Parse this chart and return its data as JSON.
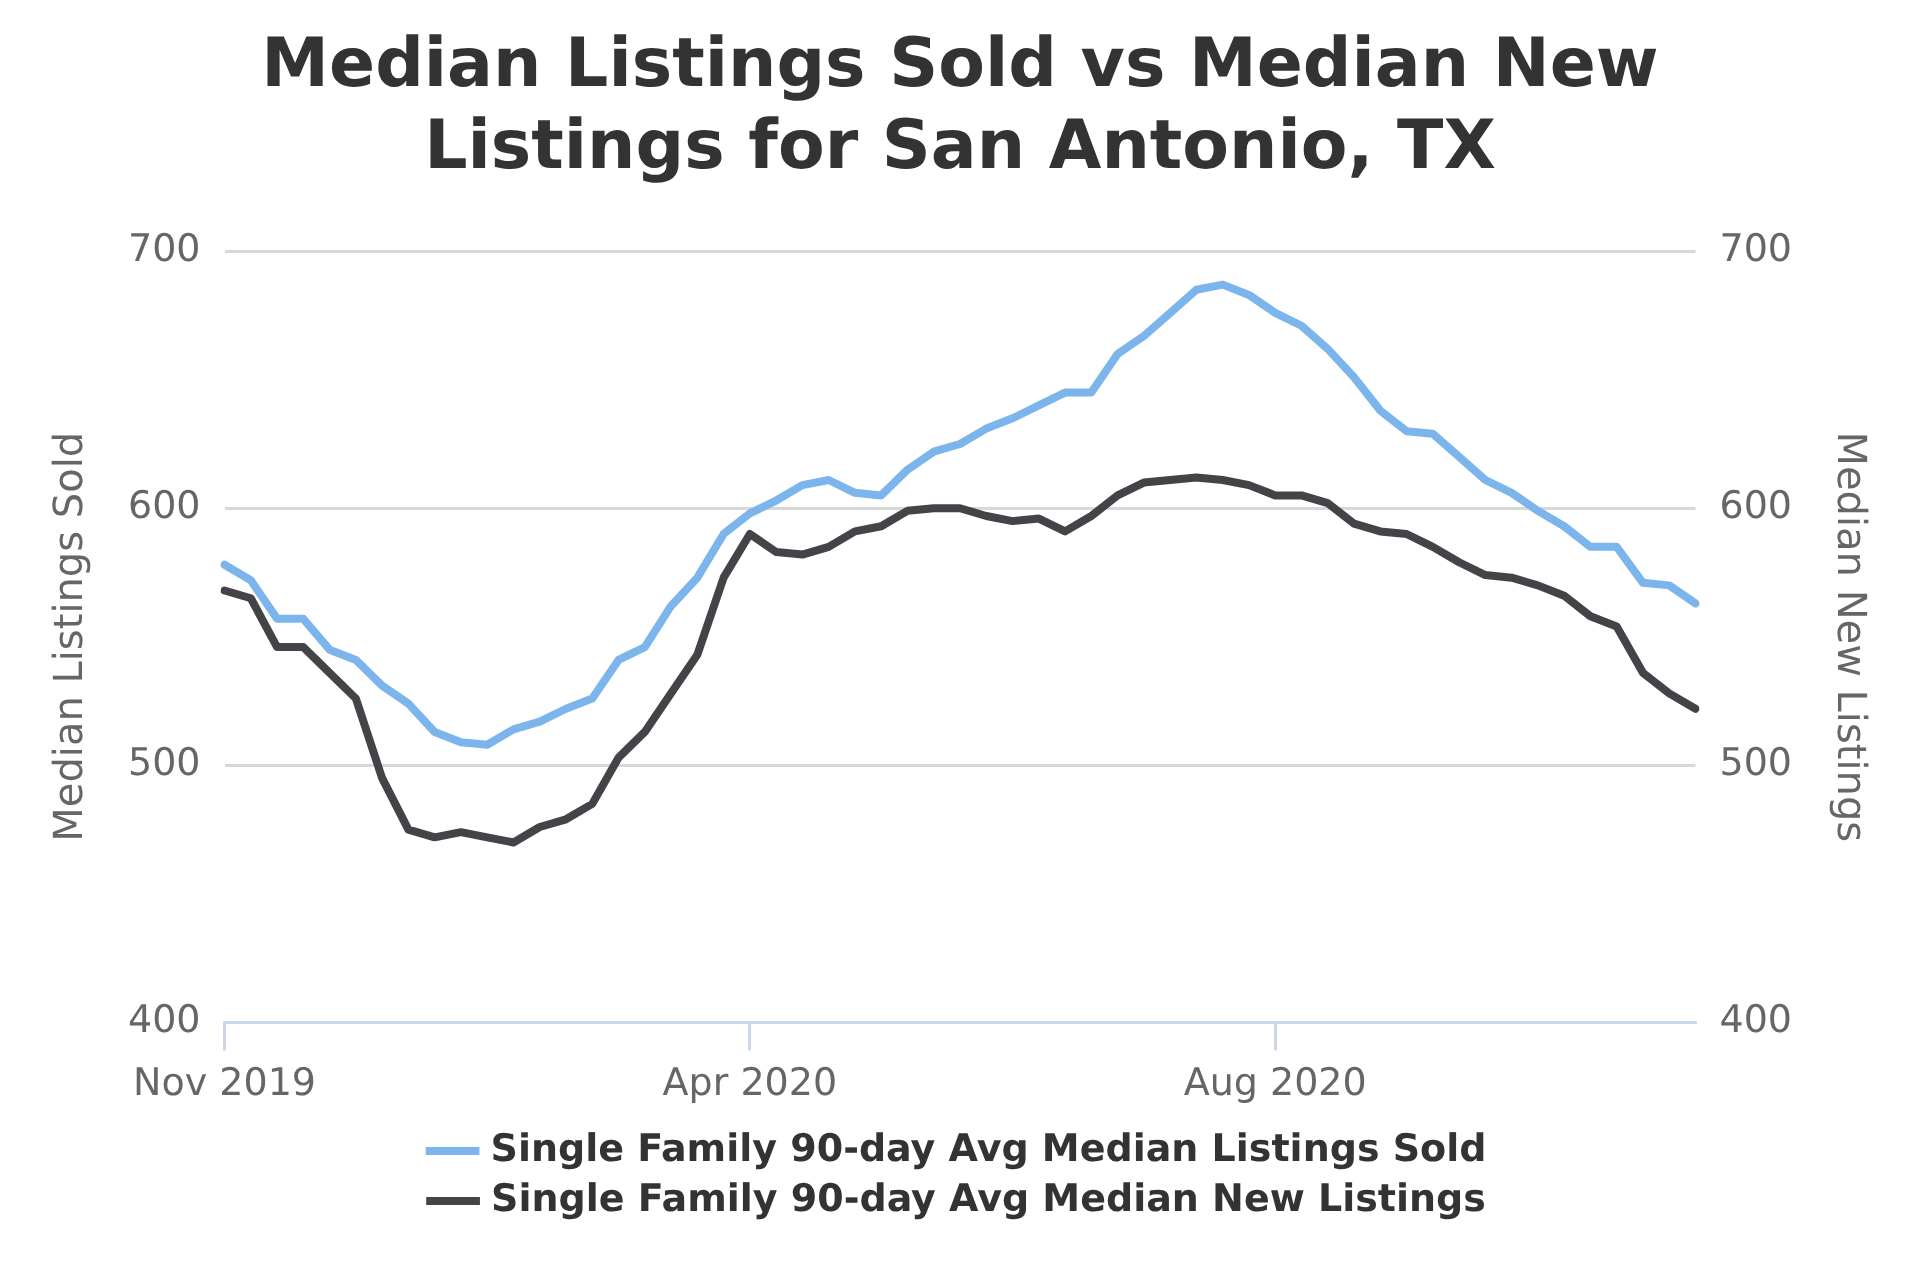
{
  "chart_data": {
    "type": "line",
    "title": "Median Listings Sold vs Median New Listings for San Antonio, TX",
    "ylabel": "Median Listings Sold",
    "y2label": "Median New Listings",
    "categories": [
      "Nov 2019",
      null,
      null,
      null,
      null,
      null,
      null,
      null,
      null,
      null,
      null,
      null,
      null,
      null,
      null,
      null,
      null,
      null,
      null,
      null,
      "Apr 2020",
      null,
      null,
      null,
      null,
      null,
      null,
      null,
      null,
      null,
      null,
      null,
      null,
      null,
      null,
      null,
      null,
      null,
      null,
      null,
      "Aug 2020",
      null,
      null,
      null,
      null,
      null,
      null,
      null,
      null,
      null,
      null,
      null,
      null,
      null,
      null,
      null,
      null
    ],
    "series": [
      {
        "name": "Single Family 90-day Avg Median Listings Sold",
        "color": "#7cb5ec",
        "values": [
          578,
          572,
          557,
          557,
          545,
          541,
          531,
          524,
          513,
          509,
          508,
          514,
          517,
          522,
          526,
          541,
          546,
          562,
          573,
          590,
          598,
          603,
          609,
          611,
          606,
          605,
          615,
          622,
          625,
          631,
          635,
          640,
          645,
          645,
          660,
          667,
          676,
          685,
          687,
          683,
          676,
          671,
          662,
          651,
          638,
          630,
          629,
          620,
          611,
          606,
          599,
          593,
          585,
          585,
          571,
          570,
          563
        ]
      },
      {
        "name": "Single Family 90-day Avg Median New Listings",
        "color": "#434348",
        "axis": "y2",
        "values": [
          568,
          565,
          546,
          546,
          536,
          526,
          495,
          475,
          472,
          474,
          472,
          470,
          476,
          479,
          485,
          503,
          513,
          528,
          543,
          573,
          590,
          583,
          582,
          585,
          591,
          593,
          599,
          600,
          600,
          597,
          595,
          596,
          591,
          597,
          605,
          610,
          611,
          612,
          611,
          609,
          605,
          605,
          602,
          594,
          591,
          590,
          585,
          579,
          574,
          573,
          570,
          566,
          558,
          554,
          536,
          528,
          522
        ]
      }
    ],
    "ylim": [
      400,
      700
    ],
    "yticks": [
      400,
      500,
      600,
      700
    ],
    "y2lim": [
      400,
      700
    ],
    "y2ticks": [
      400,
      500,
      600,
      700
    ],
    "grid": "y",
    "legend": "bottom",
    "marker": "none",
    "line_style": "solid"
  }
}
